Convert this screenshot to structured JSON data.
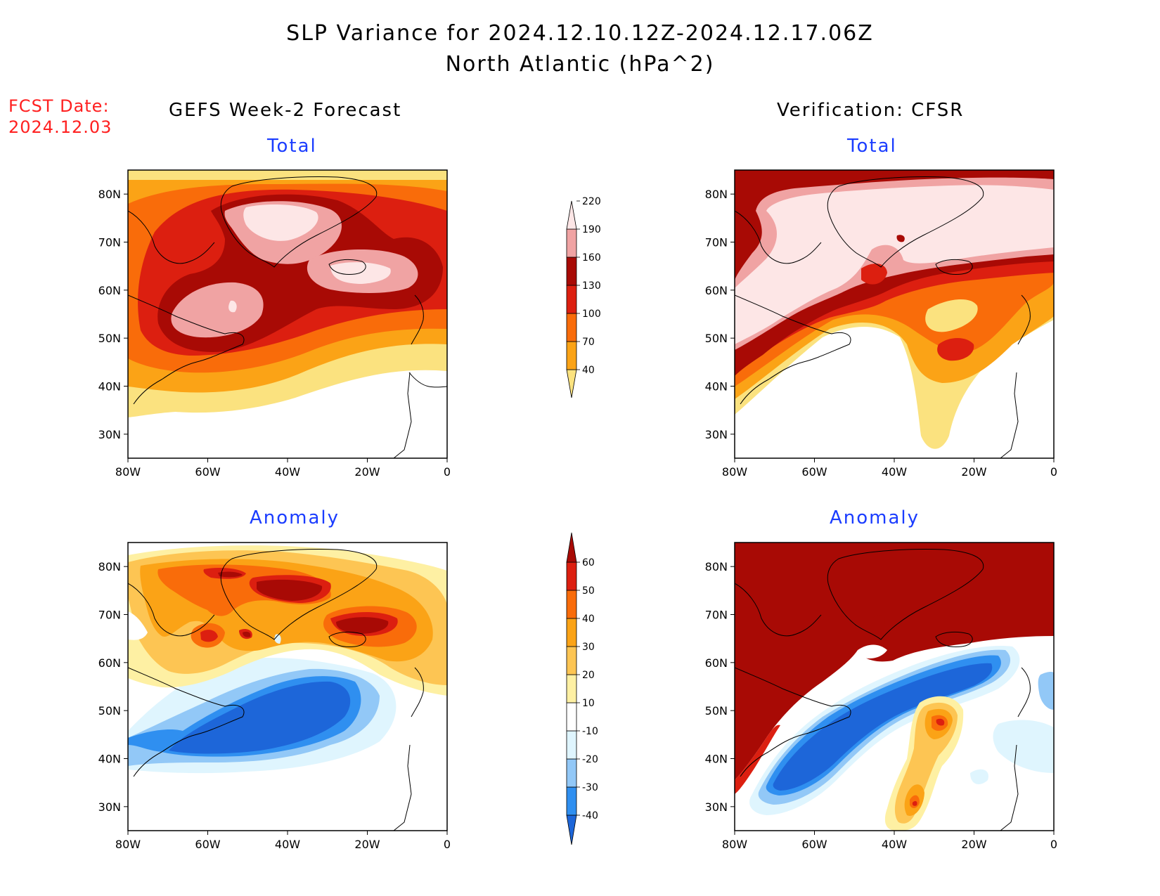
{
  "header": {
    "title_line1": "SLP Variance for 2024.12.10.12Z-2024.12.17.06Z",
    "title_line2": "North Atlantic (hPa^2)"
  },
  "fcst_date": {
    "label": "FCST Date:",
    "value": "2024.12.03"
  },
  "columns": {
    "left": "GEFS Week-2 Forecast",
    "right": "Verification: CFSR"
  },
  "panels": {
    "top_left": "Total",
    "top_right": "Total",
    "bottom_left": "Anomaly",
    "bottom_right": "Anomaly"
  },
  "axes": {
    "lon_labels": [
      "80W",
      "60W",
      "40W",
      "20W",
      "0"
    ],
    "lat_labels": [
      "80N",
      "70N",
      "60N",
      "50N",
      "40N",
      "30N"
    ]
  },
  "colorbars": {
    "total": {
      "levels": [
        "40",
        "70",
        "100",
        "130",
        "160",
        "190",
        "220"
      ],
      "colors": [
        "#fbe27f",
        "#fba316",
        "#f96c0a",
        "#dc1f10",
        "#a80a05",
        "#f0a3a3",
        "#fde6e6"
      ]
    },
    "anomaly": {
      "levels": [
        "-40",
        "-30",
        "-20",
        "-10",
        "10",
        "20",
        "30",
        "40",
        "50",
        "60"
      ],
      "colors": [
        "#1d66d9",
        "#2f8ff0",
        "#92c8f7",
        "#dff5fe",
        "#ffffff",
        "#fef0a3",
        "#fdc553",
        "#fba316",
        "#f96c0a",
        "#dc1f10",
        "#a80a05"
      ]
    }
  }
}
